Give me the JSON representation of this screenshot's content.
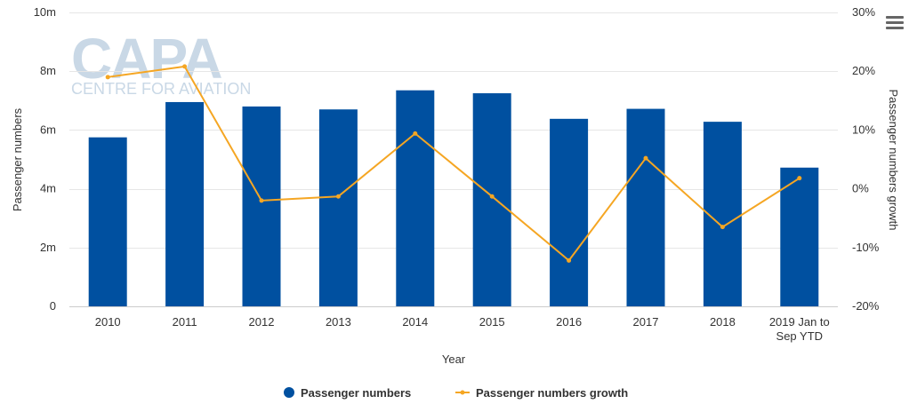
{
  "watermark": {
    "logo": "CAPA",
    "subtitle": "CENTRE FOR AVIATION"
  },
  "menu": {
    "icon": "hamburger-menu-icon"
  },
  "legend": {
    "items": [
      {
        "label": "Passenger numbers",
        "color": "#0050a0"
      },
      {
        "label": "Passenger numbers growth",
        "color": "#f5a623"
      }
    ]
  },
  "chart_data": {
    "type": "bar",
    "categories": [
      "2010",
      "2011",
      "2012",
      "2013",
      "2014",
      "2015",
      "2016",
      "2017",
      "2018",
      "2019 Jan to Sep YTD"
    ],
    "category_label_lines": [
      [
        "2010"
      ],
      [
        "2011"
      ],
      [
        "2012"
      ],
      [
        "2013"
      ],
      [
        "2014"
      ],
      [
        "2015"
      ],
      [
        "2016"
      ],
      [
        "2017"
      ],
      [
        "2018"
      ],
      [
        "2019 Jan to",
        "Sep YTD"
      ]
    ],
    "series": [
      {
        "name": "Passenger numbers",
        "type": "bar",
        "axis": "left",
        "color": "#0050a0",
        "values": [
          5.75,
          6.95,
          6.8,
          6.7,
          7.35,
          7.25,
          6.38,
          6.72,
          6.28,
          4.72
        ]
      },
      {
        "name": "Passenger numbers growth",
        "type": "line",
        "axis": "right",
        "color": "#f5a623",
        "values": [
          19.0,
          20.8,
          -2.0,
          -1.3,
          9.4,
          -1.3,
          -12.2,
          5.2,
          -6.5,
          1.8
        ]
      }
    ],
    "xlabel": "Year",
    "ylabel": "Passenger numbers",
    "ylabel_right": "Passenger numbers growth",
    "ylim": [
      0,
      10
    ],
    "ylim_right": [
      -20,
      30
    ],
    "yticks": [
      "0",
      "2m",
      "4m",
      "6m",
      "8m",
      "10m"
    ],
    "yticks_right": [
      "-20%",
      "-10%",
      "0%",
      "10%",
      "20%",
      "30%"
    ],
    "grid": true,
    "legend_position": "bottom-center"
  }
}
